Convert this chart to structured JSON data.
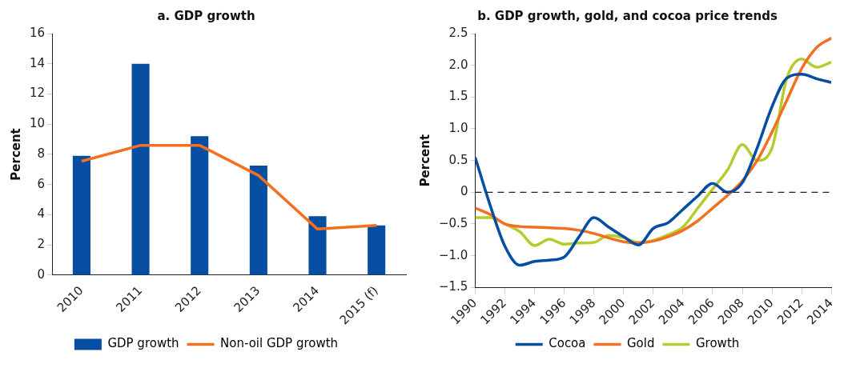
{
  "chart_data": [
    {
      "type": "bar",
      "title": "a. GDP growth",
      "ylabel": "Percent",
      "categories": [
        "2010",
        "2011",
        "2012",
        "2013",
        "2014",
        "2015 (f)"
      ],
      "series": [
        {
          "name": "GDP growth",
          "type": "bar",
          "color": "#054ea2",
          "values": [
            7.9,
            14,
            9.2,
            7.25,
            3.9,
            3.3
          ]
        },
        {
          "name": "Non-oil GDP growth",
          "type": "line",
          "color": "#f37021",
          "values": [
            7.55,
            8.6,
            8.6,
            6.6,
            3.05,
            3.3
          ]
        }
      ],
      "ylim": [
        0,
        16
      ],
      "yticks": [
        0,
        2,
        4,
        6,
        8,
        10,
        12,
        14,
        16
      ],
      "grid": false,
      "legend": "bottom"
    },
    {
      "type": "line",
      "title": "b. GDP growth, gold, and cocoa price trends",
      "ylabel": "Percent",
      "x": [
        1990,
        1991,
        1992,
        1993,
        1994,
        1995,
        1996,
        1997,
        1998,
        1999,
        2000,
        2001,
        2002,
        2003,
        2004,
        2005,
        2006,
        2007,
        2008,
        2009,
        2010,
        2011,
        2012,
        2013,
        2014
      ],
      "series": [
        {
          "name": "Cocoa",
          "color": "#054ea2",
          "values": [
            0.55,
            -0.2,
            -0.85,
            -1.15,
            -1.09,
            -1.07,
            -1.02,
            -0.7,
            -0.4,
            -0.55,
            -0.7,
            -0.83,
            -0.57,
            -0.48,
            -0.27,
            -0.06,
            0.14,
            0.0,
            0.15,
            0.7,
            1.35,
            1.8,
            1.86,
            1.79,
            1.73
          ]
        },
        {
          "name": "Gold",
          "color": "#f37021",
          "values": [
            -0.25,
            -0.35,
            -0.5,
            -0.54,
            -0.55,
            -0.56,
            -0.57,
            -0.6,
            -0.65,
            -0.72,
            -0.78,
            -0.8,
            -0.77,
            -0.7,
            -0.6,
            -0.45,
            -0.25,
            -0.05,
            0.18,
            0.5,
            0.95,
            1.45,
            1.95,
            2.28,
            2.43
          ]
        },
        {
          "name": "Growth",
          "color": "#b5cc2e",
          "values": [
            -0.4,
            -0.4,
            -0.5,
            -0.62,
            -0.84,
            -0.74,
            -0.82,
            -0.8,
            -0.79,
            -0.68,
            -0.72,
            -0.79,
            -0.76,
            -0.67,
            -0.55,
            -0.25,
            0.05,
            0.35,
            0.75,
            0.5,
            0.7,
            1.8,
            2.1,
            1.97,
            2.05
          ]
        }
      ],
      "xlim": [
        1990,
        2014
      ],
      "xticks": [
        1990,
        1992,
        1994,
        1996,
        1998,
        2000,
        2002,
        2004,
        2006,
        2008,
        2010,
        2012,
        2014
      ],
      "ylim": [
        -1.5,
        2.5
      ],
      "yticks": [
        {
          "value": -1.5,
          "label": "−1.5"
        },
        {
          "value": -1,
          "label": "−1.0"
        },
        {
          "value": -0.5,
          "label": "−0.5"
        },
        0,
        {
          "value": 0.5,
          "label": "0.5"
        },
        {
          "value": 1,
          "label": "1.0"
        },
        {
          "value": 1.5,
          "label": "1.5"
        },
        {
          "value": 2,
          "label": "2.0"
        },
        {
          "value": 2.5,
          "label": "2.5"
        }
      ],
      "ref_lines": [
        {
          "axis": "y",
          "value": 0,
          "color": "#222222",
          "line_style": "dashed"
        }
      ],
      "grid": false,
      "legend": "bottom"
    }
  ]
}
